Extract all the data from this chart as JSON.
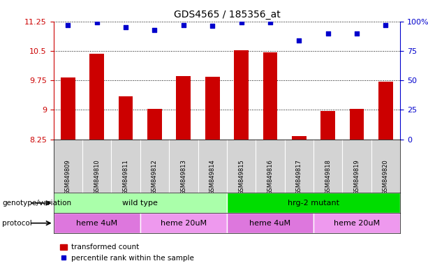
{
  "title": "GDS4565 / 185356_at",
  "samples": [
    "GSM849809",
    "GSM849810",
    "GSM849811",
    "GSM849812",
    "GSM849813",
    "GSM849814",
    "GSM849815",
    "GSM849816",
    "GSM849817",
    "GSM849818",
    "GSM849819",
    "GSM849820"
  ],
  "bar_values": [
    9.82,
    10.42,
    9.35,
    9.02,
    9.86,
    9.84,
    10.51,
    10.47,
    8.33,
    8.97,
    9.02,
    9.72
  ],
  "scatter_values": [
    97,
    99,
    95,
    93,
    97,
    96,
    99,
    99,
    84,
    90,
    90,
    97
  ],
  "ylim_left": [
    8.25,
    11.25
  ],
  "ylim_right": [
    0,
    100
  ],
  "yticks_left": [
    8.25,
    9.0,
    9.75,
    10.5,
    11.25
  ],
  "ytick_labels_left": [
    "8.25",
    "9",
    "9.75",
    "10.5",
    "11.25"
  ],
  "yticks_right": [
    0,
    25,
    50,
    75,
    100
  ],
  "ytick_labels_right": [
    "0",
    "25",
    "50",
    "75",
    "100%"
  ],
  "bar_color": "#cc0000",
  "scatter_color": "#0000cc",
  "genotype_groups": [
    {
      "label": "wild type",
      "start": 0,
      "end": 6,
      "color": "#aaffaa"
    },
    {
      "label": "hrg-2 mutant",
      "start": 6,
      "end": 12,
      "color": "#00dd00"
    }
  ],
  "protocol_groups": [
    {
      "label": "heme 4uM",
      "start": 0,
      "end": 3,
      "color": "#dd77dd"
    },
    {
      "label": "heme 20uM",
      "start": 3,
      "end": 6,
      "color": "#ee99ee"
    },
    {
      "label": "heme 4uM",
      "start": 6,
      "end": 9,
      "color": "#dd77dd"
    },
    {
      "label": "heme 20uM",
      "start": 9,
      "end": 12,
      "color": "#ee99ee"
    }
  ],
  "legend_bar_label": "transformed count",
  "legend_scatter_label": "percentile rank within the sample",
  "left_axis_color": "#cc0000",
  "right_axis_color": "#0000cc",
  "bg_sample_row": "#d3d3d3",
  "separator_color": "#ffffff"
}
